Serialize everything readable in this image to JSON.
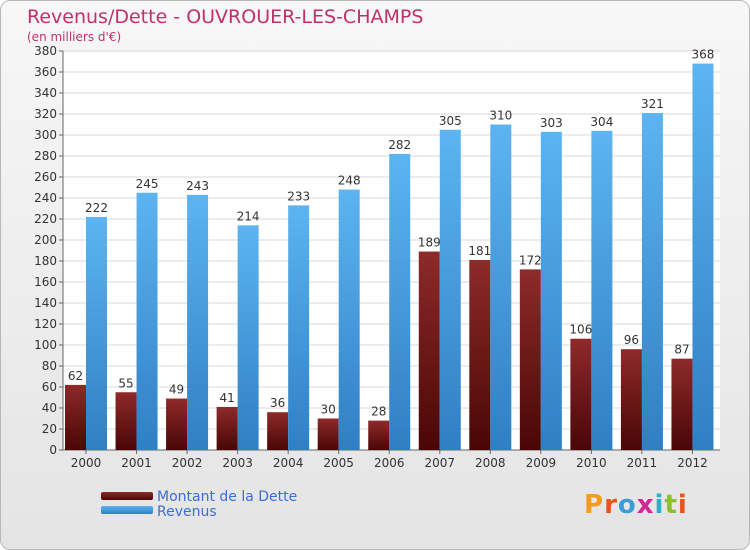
{
  "header": {
    "title": "Revenus/Dette - OUVROUER-LES-CHAMPS",
    "unit_note": "(en milliers d'€)"
  },
  "chart_data": {
    "type": "bar",
    "categories": [
      "2000",
      "2001",
      "2002",
      "2003",
      "2004",
      "2005",
      "2006",
      "2007",
      "2008",
      "2009",
      "2010",
      "2011",
      "2012"
    ],
    "series": [
      {
        "name": "Montant de la Dette",
        "values": [
          62,
          55,
          49,
          41,
          36,
          30,
          28,
          189,
          181,
          172,
          106,
          96,
          87
        ],
        "color": "#7a1f1f"
      },
      {
        "name": "Revenus",
        "values": [
          222,
          245,
          243,
          214,
          233,
          248,
          282,
          305,
          310,
          303,
          304,
          321,
          368
        ],
        "color": "#4aa3e8"
      }
    ],
    "ylim": [
      0,
      380
    ],
    "ytick_step": 20,
    "grid": true,
    "legend_placement": "bottom-left"
  },
  "logo": {
    "text": "Proxiti",
    "colors": [
      "#f39b1f",
      "#e8541a",
      "#3c9cd8",
      "#d6249a",
      "#2ab0c5",
      "#8bbf2d",
      "#e8541a"
    ]
  }
}
